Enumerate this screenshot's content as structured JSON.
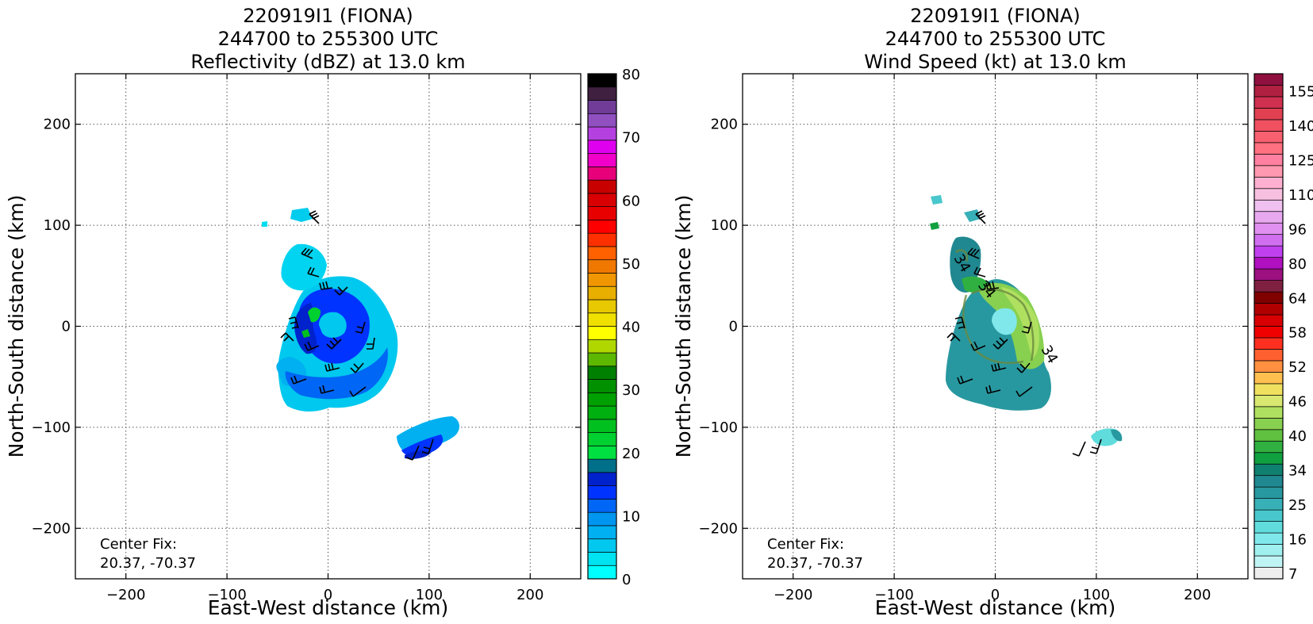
{
  "chart_data": [
    {
      "type": "heatmap",
      "title_lines": [
        "220919I1 (FIONA)",
        "244700 to 255300 UTC",
        "Reflectivity (dBZ) at 13.0 km"
      ],
      "xlabel": "East-West distance (km)",
      "ylabel": "North-South distance (km)",
      "xlim": [
        -250,
        250
      ],
      "ylim": [
        -250,
        250
      ],
      "xticks": [
        -200,
        -100,
        0,
        100,
        200
      ],
      "yticks": [
        -200,
        -100,
        0,
        100,
        200
      ],
      "xtick_labels": [
        "−200",
        "−100",
        "0",
        "100",
        "200"
      ],
      "ytick_labels": [
        "−200",
        "−100",
        "0",
        "100",
        "200"
      ],
      "grid": true,
      "annotation_lines": [
        "Center Fix:",
        "20.37, -70.37"
      ],
      "colorbar": {
        "colors": [
          "#00ffff",
          "#00e3f0",
          "#00c8ee",
          "#00b0f0",
          "#0096f0",
          "#0066f5",
          "#0033ff",
          "#0022cc",
          "#00708a",
          "#00e040",
          "#00d030",
          "#00c020",
          "#00b010",
          "#00a000",
          "#009000",
          "#008000",
          "#5cb800",
          "#b0d800",
          "#ffff00",
          "#f0e000",
          "#e8c800",
          "#e8ae00",
          "#f09600",
          "#f07800",
          "#ff6000",
          "#ff3000",
          "#ff0000",
          "#e80000",
          "#d80000",
          "#c80000",
          "#e8007a",
          "#f000c8",
          "#e000f0",
          "#b440e0",
          "#9050c0",
          "#703c98",
          "#402040",
          "#000000"
        ],
        "tick_values": [
          0,
          10,
          20,
          30,
          40,
          50,
          60,
          70,
          80
        ],
        "tick_labels": [
          "0",
          "10",
          "20",
          "30",
          "40",
          "50",
          "60",
          "70",
          "80"
        ],
        "range": [
          0,
          80
        ]
      }
    },
    {
      "type": "heatmap",
      "title_lines": [
        "220919I1 (FIONA)",
        "244700 to 255300 UTC",
        "Wind Speed (kt) at 13.0 km"
      ],
      "xlabel": "East-West distance (km)",
      "ylabel": "North-South distance (km)",
      "xlim": [
        -250,
        250
      ],
      "ylim": [
        -250,
        250
      ],
      "xticks": [
        -200,
        -100,
        0,
        100,
        200
      ],
      "yticks": [
        -200,
        -100,
        0,
        100,
        200
      ],
      "xtick_labels": [
        "−200",
        "−100",
        "0",
        "100",
        "200"
      ],
      "ytick_labels": [
        "−200",
        "−100",
        "0",
        "100",
        "200"
      ],
      "grid": true,
      "contour_labels": [
        "34",
        "34",
        "34"
      ],
      "annotation_lines": [
        "Center Fix:",
        "20.37, -70.37"
      ],
      "colorbar": {
        "colors": [
          "#eeeeee",
          "#c0f4f4",
          "#a0f0f0",
          "#80e8ea",
          "#60dcdc",
          "#48c8cc",
          "#38b0b8",
          "#2898a0",
          "#208890",
          "#108070",
          "#10a040",
          "#30b040",
          "#60c040",
          "#88d050",
          "#b0e060",
          "#d8e870",
          "#f0e060",
          "#ffc050",
          "#ff9040",
          "#ff6030",
          "#ff3020",
          "#f00000",
          "#d80000",
          "#b00000",
          "#800000",
          "#802040",
          "#9c1080",
          "#b010c0",
          "#c040f0",
          "#d070f0",
          "#e090f0",
          "#e8a8f0",
          "#f0c0f0",
          "#f8c0e0",
          "#ffb0d0",
          "#ff98b0",
          "#ff80a0",
          "#ff7080",
          "#f86070",
          "#f05060",
          "#e04050",
          "#d03050",
          "#b02040",
          "#901040"
        ],
        "tick_labels": [
          "7",
          "16",
          "25",
          "34",
          "40",
          "46",
          "52",
          "58",
          "64",
          "80",
          "96",
          "110",
          "125",
          "140",
          "155"
        ],
        "tick_slots": [
          0,
          3,
          6,
          9,
          12,
          15,
          18,
          21,
          24,
          27,
          30,
          33,
          36,
          39,
          42
        ]
      }
    }
  ]
}
